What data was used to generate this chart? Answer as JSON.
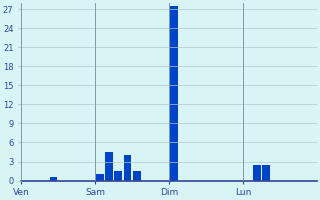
{
  "background_color": "#d8f4f4",
  "bar_color": "#0044cc",
  "grid_color": "#b0c8c8",
  "axis_color": "#334499",
  "tick_color": "#334499",
  "ylim": [
    0,
    28
  ],
  "yticks": [
    0,
    3,
    6,
    9,
    12,
    15,
    18,
    21,
    24,
    27
  ],
  "day_labels": [
    "Ven",
    "Sam",
    "Dim",
    "Lun"
  ],
  "day_boundary_positions": [
    0,
    8,
    16,
    24,
    32
  ],
  "bar_values": [
    0,
    0,
    0,
    0.5,
    0,
    0,
    0,
    0,
    1.0,
    4.5,
    1.5,
    4.0,
    1.5,
    0,
    0,
    0,
    27.5,
    0,
    0,
    0,
    0,
    0,
    0,
    0,
    0,
    2.5,
    2.5,
    0,
    0,
    0,
    0,
    0
  ],
  "num_bars": 32,
  "figsize": [
    3.2,
    2.0
  ],
  "dpi": 100
}
